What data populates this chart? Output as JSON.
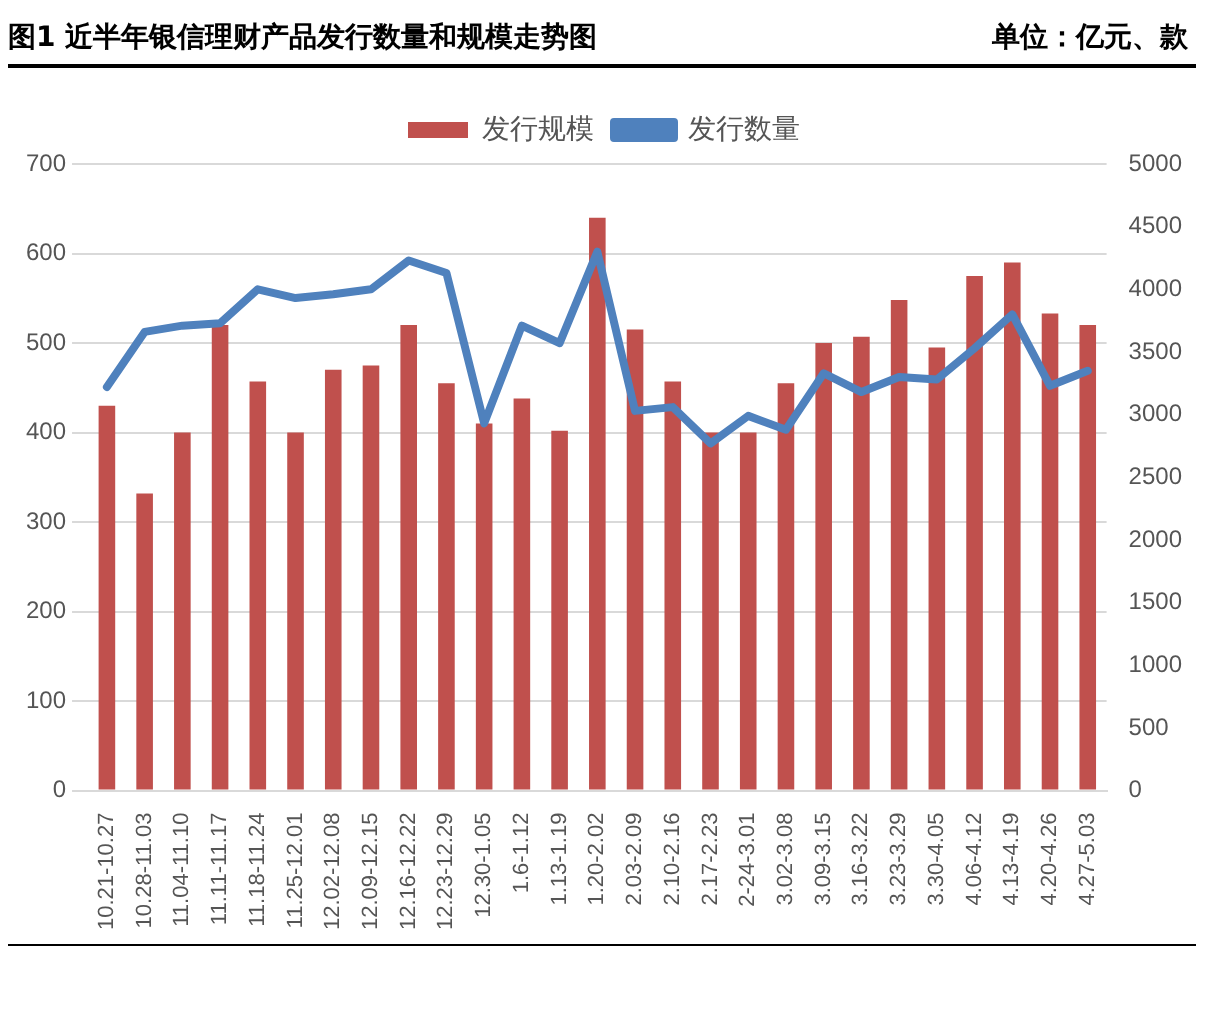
{
  "chart_data": {
    "type": "bar",
    "title": "图1 近半年银信理财产品发行数量和规模走势图",
    "subtitle": "单位：亿元、款",
    "categories": [
      "10.21-10.27",
      "10.28-11.03",
      "11.04-11.10",
      "11.11-11.17",
      "11.18-11.24",
      "11.25-12.01",
      "12.02-12.08",
      "12.09-12.15",
      "12.16-12.22",
      "12.23-12.29",
      "12.30-1.05",
      "1.6-1.12",
      "1.13-1.19",
      "1.20-2.02",
      "2.03-2.09",
      "2.10-2.16",
      "2.17-2.23",
      "2-24-3.01",
      "3.02-3.08",
      "3.09-3.15",
      "3.16-3.22",
      "3.23-3.29",
      "3.30-4.05",
      "4.06-4.12",
      "4.13-4.19",
      "4.20-4.26",
      "4.27-5.03"
    ],
    "series": [
      {
        "name": "发行规模",
        "color": "#c0504d",
        "values": [
          430,
          332,
          400,
          520,
          457,
          400,
          470,
          475,
          520,
          455,
          410,
          438,
          402,
          640,
          515,
          457,
          400,
          400,
          455,
          500,
          507,
          548,
          495,
          575,
          590,
          533,
          520
        ]
      },
      {
        "name": "发行数量",
        "type": "line",
        "axis": "y2",
        "color": "#4f81bd",
        "values": [
          3220,
          3660,
          3710,
          3730,
          4000,
          3930,
          3960,
          4000,
          4230,
          4130,
          2930,
          3710,
          3570,
          4300,
          3030,
          3060,
          2770,
          2990,
          2880,
          3330,
          3180,
          3300,
          3280,
          3530,
          3800,
          3230,
          3350
        ]
      }
    ],
    "ylim": [
      0,
      700
    ],
    "yticks": [
      0,
      100,
      200,
      300,
      400,
      500,
      600,
      700
    ],
    "y2lim": [
      0,
      5000
    ],
    "y2ticks": [
      0,
      500,
      1000,
      1500,
      2000,
      2500,
      3000,
      3500,
      4000,
      4500,
      5000
    ],
    "grid": "y",
    "legend": "top",
    "marker": "none"
  }
}
